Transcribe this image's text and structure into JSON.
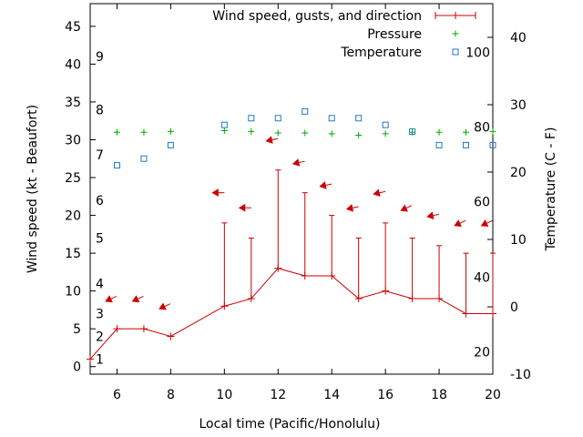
{
  "chart_data": {
    "type": "line",
    "xlabel": "Local time (Pacific/Honolulu)",
    "ylabel_left": "Wind speed (kt - Beaufort)",
    "ylabel_right": "Temperature (C - F)",
    "xlim": [
      5,
      20
    ],
    "ylim_left": [
      -1,
      48
    ],
    "ylim_right": [
      -10,
      45
    ],
    "x_ticks": [
      6,
      8,
      10,
      12,
      14,
      16,
      18,
      20
    ],
    "y_left_ticks": [
      0,
      5,
      10,
      15,
      20,
      25,
      30,
      35,
      40,
      45
    ],
    "y_right_ticks": [
      -10,
      0,
      10,
      20,
      30,
      40
    ],
    "beaufort_labels": [
      {
        "label": "1",
        "kt": 1
      },
      {
        "label": "2",
        "kt": 4
      },
      {
        "label": "3",
        "kt": 7
      },
      {
        "label": "4",
        "kt": 11
      },
      {
        "label": "5",
        "kt": 17
      },
      {
        "label": "6",
        "kt": 22
      },
      {
        "label": "7",
        "kt": 28
      },
      {
        "label": "8",
        "kt": 34
      },
      {
        "label": "9",
        "kt": 41
      }
    ],
    "fahrenheit_labels": [
      {
        "label": "20",
        "c": -6.7
      },
      {
        "label": "40",
        "c": 4.4
      },
      {
        "label": "60",
        "c": 15.6
      },
      {
        "label": "80",
        "c": 26.7
      },
      {
        "label": "100",
        "c": 37.8
      }
    ],
    "legend": {
      "placement": "top-right",
      "entries": [
        "Wind speed, gusts, and direction",
        "Pressure",
        "Temperature"
      ]
    },
    "series": [
      {
        "name": "Wind speed, gusts, and direction",
        "color": "#cc0000",
        "x": [
          5,
          6,
          7,
          8,
          10,
          11,
          12,
          13,
          14,
          15,
          16,
          17,
          18,
          19,
          20
        ],
        "values": [
          1,
          5,
          5,
          4,
          8,
          9,
          13,
          12,
          12,
          9,
          10,
          9,
          9,
          7,
          7
        ],
        "gusts": [
          null,
          null,
          null,
          null,
          19,
          17,
          26,
          23,
          20,
          17,
          19,
          17,
          16,
          15,
          15
        ]
      },
      {
        "name": "Pressure",
        "color": "#00aa00",
        "x": [
          6,
          7,
          8,
          10,
          11,
          12,
          13,
          14,
          15,
          16,
          17,
          18,
          19,
          20
        ],
        "values": [
          31,
          31,
          31.1,
          31.2,
          31.1,
          30.9,
          30.9,
          30.8,
          30.6,
          30.8,
          31,
          31,
          31,
          31.1
        ]
      },
      {
        "name": "Temperature",
        "color": "#2277cc",
        "x": [
          6,
          7,
          8,
          10,
          11,
          12,
          13,
          14,
          15,
          16,
          17,
          18,
          19,
          20
        ],
        "values": [
          21,
          22,
          24,
          27,
          28,
          28,
          29,
          28,
          28,
          27,
          26,
          24,
          24,
          24
        ]
      }
    ],
    "wind_arrows": [
      {
        "x": 6,
        "kt": 9,
        "dir": "ne"
      },
      {
        "x": 7,
        "kt": 9,
        "dir": "ne"
      },
      {
        "x": 8,
        "kt": 8,
        "dir": "ne"
      },
      {
        "x": 10,
        "kt": 23,
        "dir": "e"
      },
      {
        "x": 11,
        "kt": 21,
        "dir": "e"
      },
      {
        "x": 12,
        "kt": 30,
        "dir": "ene"
      },
      {
        "x": 13,
        "kt": 27,
        "dir": "ene"
      },
      {
        "x": 14,
        "kt": 24,
        "dir": "ene"
      },
      {
        "x": 15,
        "kt": 21,
        "dir": "ene"
      },
      {
        "x": 16,
        "kt": 23,
        "dir": "ene"
      },
      {
        "x": 17,
        "kt": 21,
        "dir": "ne"
      },
      {
        "x": 18,
        "kt": 20,
        "dir": "ene"
      },
      {
        "x": 19,
        "kt": 19,
        "dir": "ne"
      },
      {
        "x": 20,
        "kt": 19,
        "dir": "ne"
      }
    ]
  }
}
